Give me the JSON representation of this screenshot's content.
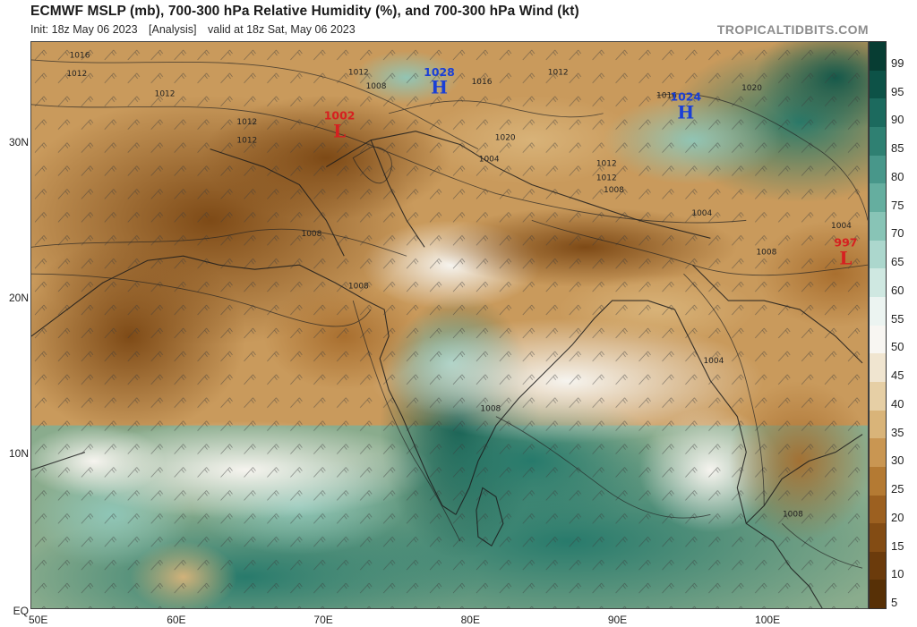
{
  "title": "ECMWF MSLP (mb), 700-300 hPa Relative Humidity (%), and 700-300 hPa Wind (kt)",
  "init": "Init: 18z May 06 2023",
  "run_type": "[Analysis]",
  "valid": "valid at 18z Sat, May 06 2023",
  "brand": "TROPICALTIDBITS.COM",
  "latitude_labels": [
    {
      "label": "30N",
      "value": 30
    },
    {
      "label": "20N",
      "value": 20
    },
    {
      "label": "10N",
      "value": 10
    },
    {
      "label": "EQ",
      "value": 0
    }
  ],
  "longitude_labels": [
    {
      "label": "50E",
      "value": 50
    },
    {
      "label": "60E",
      "value": 60
    },
    {
      "label": "70E",
      "value": 70
    },
    {
      "label": "80E",
      "value": 80
    },
    {
      "label": "90E",
      "value": 90
    },
    {
      "label": "100E",
      "value": 100
    }
  ],
  "extent": {
    "lon_min": 50,
    "lon_max": 107,
    "lat_min": 0,
    "lat_max": 36.5
  },
  "colorbar": {
    "ticks": [
      "99",
      "95",
      "90",
      "85",
      "80",
      "75",
      "70",
      "65",
      "60",
      "55",
      "50",
      "45",
      "40",
      "35",
      "30",
      "25",
      "20",
      "15",
      "10",
      "5"
    ],
    "colors": [
      "#073d33",
      "#0d5247",
      "#1c6a5e",
      "#2f8072",
      "#48978a",
      "#65ae9f",
      "#88c4b6",
      "#acd7cd",
      "#cfe8e1",
      "#ecf4f1",
      "#f8f6f2",
      "#f0e5d0",
      "#e6cfa5",
      "#d9b479",
      "#c99652",
      "#b47a33",
      "#9c6020",
      "#834c14",
      "#6b3b0c",
      "#573006"
    ]
  },
  "pressure_systems": [
    {
      "type": "L",
      "value": "1002",
      "lon": 71.0,
      "lat": 30.6,
      "color": "#d62020"
    },
    {
      "type": "H",
      "value": "1028",
      "lon": 77.8,
      "lat": 33.4,
      "color": "#1a3fd6"
    },
    {
      "type": "H",
      "value": "1024",
      "lon": 94.6,
      "lat": 31.8,
      "color": "#1a3fd6"
    },
    {
      "type": "L",
      "value": "997",
      "lon": 105.5,
      "lat": 22.4,
      "color": "#d62020"
    }
  ],
  "isobar_labels": [
    {
      "value": "1016",
      "lon": 52.6,
      "lat": 35.5
    },
    {
      "value": "1012",
      "lon": 52.4,
      "lat": 34.3
    },
    {
      "value": "1012",
      "lon": 58.4,
      "lat": 33.0
    },
    {
      "value": "1012",
      "lon": 64.0,
      "lat": 31.2
    },
    {
      "value": "1012",
      "lon": 64.0,
      "lat": 30.0
    },
    {
      "value": "1012",
      "lon": 71.6,
      "lat": 34.4
    },
    {
      "value": "1008",
      "lon": 72.8,
      "lat": 33.5
    },
    {
      "value": "1012",
      "lon": 85.2,
      "lat": 34.4
    },
    {
      "value": "1016",
      "lon": 80.0,
      "lat": 33.8
    },
    {
      "value": "1020",
      "lon": 81.6,
      "lat": 30.2
    },
    {
      "value": "1004",
      "lon": 80.5,
      "lat": 28.8
    },
    {
      "value": "1016",
      "lon": 92.6,
      "lat": 32.9
    },
    {
      "value": "1020",
      "lon": 98.4,
      "lat": 33.4
    },
    {
      "value": "1012",
      "lon": 88.5,
      "lat": 28.5
    },
    {
      "value": "1012",
      "lon": 88.5,
      "lat": 27.6
    },
    {
      "value": "1008",
      "lon": 89.0,
      "lat": 26.8
    },
    {
      "value": "1008",
      "lon": 68.4,
      "lat": 24.0
    },
    {
      "value": "1004",
      "lon": 95.0,
      "lat": 25.3
    },
    {
      "value": "1004",
      "lon": 104.5,
      "lat": 24.5
    },
    {
      "value": "1008",
      "lon": 99.4,
      "lat": 22.8
    },
    {
      "value": "1008",
      "lon": 71.6,
      "lat": 20.6
    },
    {
      "value": "1004",
      "lon": 95.8,
      "lat": 15.8
    },
    {
      "value": "1008",
      "lon": 80.6,
      "lat": 12.7
    },
    {
      "value": "1008",
      "lon": 101.2,
      "lat": 5.9
    }
  ]
}
